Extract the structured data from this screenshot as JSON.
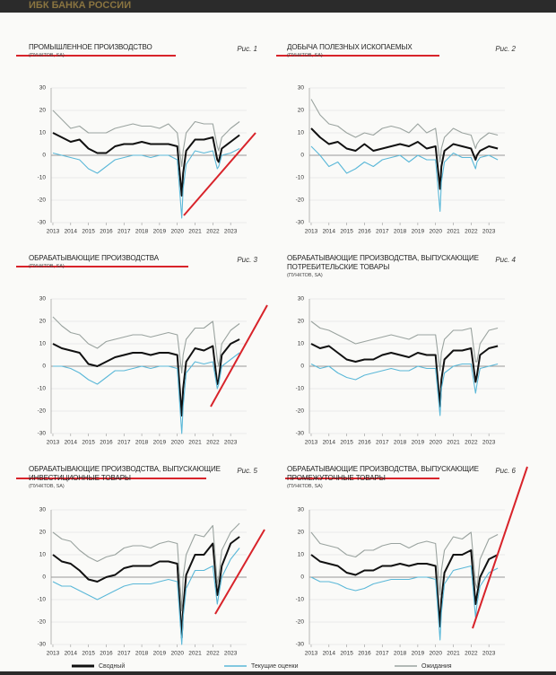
{
  "header": "ИБК БАНКА РОССИИ",
  "chart_data": [
    {
      "type": "line",
      "title": "ПРОМЫШЛЕННОЕ ПРОИЗВОДСТВО",
      "figure_label": "Рис. 1",
      "subtitle": "(ПУНКТОВ, SA)",
      "x": [
        2013,
        2013.5,
        2014,
        2014.5,
        2015,
        2015.5,
        2016,
        2016.5,
        2017,
        2017.5,
        2018,
        2018.5,
        2019,
        2019.5,
        2020,
        2020.25,
        2020.33,
        2020.5,
        2021,
        2021.5,
        2022,
        2022.25,
        2022.33,
        2022.5,
        2023,
        2023.5
      ],
      "xlim": [
        2012.9,
        2023.9
      ],
      "xticks": [
        2013,
        2014,
        2015,
        2016,
        2017,
        2018,
        2019,
        2020,
        2021,
        2022,
        2023
      ],
      "ylim": [
        -30,
        30
      ],
      "yticks": [
        -30,
        -20,
        -10,
        0,
        10,
        20,
        30
      ],
      "grid": true,
      "series": [
        {
          "name": "Сводный",
          "color": "#111111",
          "values": [
            10,
            8,
            6,
            7,
            3,
            1,
            1,
            4,
            5,
            5,
            6,
            5,
            5,
            5,
            4,
            -18,
            -8,
            2,
            7,
            7,
            8,
            -2,
            -3,
            3,
            6,
            9
          ]
        },
        {
          "name": "Текущие оценки",
          "color": "#5bb8d8",
          "values": [
            1,
            0,
            -1,
            -2,
            -6,
            -8,
            -5,
            -2,
            -1,
            0,
            0,
            -1,
            0,
            0,
            -2,
            -28,
            -15,
            -4,
            2,
            1,
            2,
            -6,
            -5,
            0,
            1,
            3
          ]
        },
        {
          "name": "Ожидания",
          "color": "#9aa39f",
          "values": [
            20,
            16,
            12,
            13,
            10,
            10,
            10,
            12,
            13,
            14,
            13,
            13,
            12,
            14,
            10,
            -5,
            2,
            10,
            15,
            14,
            14,
            4,
            2,
            8,
            12,
            15
          ]
        }
      ]
    },
    {
      "type": "line",
      "title": "ДОБЫЧА ПОЛЕЗНЫХ ИСКОПАЕМЫХ",
      "figure_label": "Рис. 2",
      "subtitle": "(ПУНКТОВ, SA)",
      "x": [
        2013,
        2013.5,
        2014,
        2014.5,
        2015,
        2015.5,
        2016,
        2016.5,
        2017,
        2017.5,
        2018,
        2018.5,
        2019,
        2019.5,
        2020,
        2020.25,
        2020.33,
        2020.5,
        2021,
        2021.5,
        2022,
        2022.25,
        2022.33,
        2022.5,
        2023,
        2023.5
      ],
      "xlim": [
        2012.9,
        2023.9
      ],
      "xticks": [
        2013,
        2014,
        2015,
        2016,
        2017,
        2018,
        2019,
        2020,
        2021,
        2022,
        2023
      ],
      "ylim": [
        -30,
        30
      ],
      "yticks": [
        -30,
        -20,
        -10,
        0,
        10,
        20,
        30
      ],
      "grid": true,
      "series": [
        {
          "name": "Сводный",
          "color": "#111111",
          "values": [
            12,
            8,
            5,
            6,
            3,
            2,
            5,
            2,
            3,
            4,
            5,
            4,
            6,
            3,
            4,
            -15,
            -5,
            2,
            5,
            4,
            3,
            -2,
            0,
            2,
            4,
            3
          ]
        },
        {
          "name": "Текущие оценки",
          "color": "#5bb8d8",
          "values": [
            4,
            0,
            -5,
            -3,
            -8,
            -6,
            -3,
            -5,
            -2,
            -1,
            0,
            -3,
            0,
            -2,
            -2,
            -25,
            -12,
            -3,
            1,
            -1,
            -1,
            -6,
            -3,
            -1,
            0,
            -2
          ]
        },
        {
          "name": "Ожидания",
          "color": "#9aa39f",
          "values": [
            25,
            18,
            14,
            13,
            10,
            8,
            10,
            9,
            12,
            13,
            12,
            10,
            14,
            10,
            12,
            -3,
            3,
            8,
            12,
            10,
            9,
            3,
            5,
            7,
            10,
            9
          ]
        }
      ]
    },
    {
      "type": "line",
      "title": "ОБРАБАТЫВАЮЩИЕ ПРОИЗВОДСТВА",
      "figure_label": "Рис. 3",
      "subtitle": "(ПУНКТОВ, SA)",
      "x": [
        2013,
        2013.5,
        2014,
        2014.5,
        2015,
        2015.5,
        2016,
        2016.5,
        2017,
        2017.5,
        2018,
        2018.5,
        2019,
        2019.5,
        2020,
        2020.25,
        2020.33,
        2020.5,
        2021,
        2021.5,
        2022,
        2022.25,
        2022.33,
        2022.5,
        2023,
        2023.5
      ],
      "xlim": [
        2012.9,
        2023.9
      ],
      "xticks": [
        2013,
        2014,
        2015,
        2016,
        2017,
        2018,
        2019,
        2020,
        2021,
        2022,
        2023
      ],
      "ylim": [
        -30,
        30
      ],
      "yticks": [
        -30,
        -20,
        -10,
        0,
        10,
        20,
        30
      ],
      "grid": true,
      "series": [
        {
          "name": "Сводный",
          "color": "#111111",
          "values": [
            10,
            8,
            7,
            6,
            1,
            0,
            2,
            4,
            5,
            6,
            6,
            5,
            6,
            6,
            5,
            -22,
            -10,
            2,
            8,
            7,
            9,
            -8,
            -6,
            5,
            10,
            12
          ]
        },
        {
          "name": "Текущие оценки",
          "color": "#5bb8d8",
          "values": [
            0,
            0,
            -1,
            -3,
            -6,
            -8,
            -5,
            -2,
            -2,
            -1,
            0,
            -1,
            0,
            0,
            -1,
            -30,
            -18,
            -3,
            2,
            1,
            2,
            -10,
            -8,
            0,
            3,
            6
          ]
        },
        {
          "name": "Ожидания",
          "color": "#9aa39f",
          "values": [
            22,
            18,
            15,
            14,
            10,
            8,
            11,
            12,
            13,
            14,
            14,
            13,
            14,
            15,
            14,
            -3,
            5,
            12,
            17,
            17,
            20,
            3,
            0,
            10,
            16,
            19
          ]
        }
      ]
    },
    {
      "type": "line",
      "title": "ОБРАБАТЫВАЮЩИЕ ПРОИЗВОДСТВА, ВЫПУСКАЮЩИЕ ПОТРЕБИТЕЛЬСКИЕ ТОВАРЫ",
      "figure_label": "Рис. 4",
      "subtitle": "(ПУНКТОВ, SA)",
      "x": [
        2013,
        2013.5,
        2014,
        2014.5,
        2015,
        2015.5,
        2016,
        2016.5,
        2017,
        2017.5,
        2018,
        2018.5,
        2019,
        2019.5,
        2020,
        2020.25,
        2020.33,
        2020.5,
        2021,
        2021.5,
        2022,
        2022.25,
        2022.33,
        2022.5,
        2023,
        2023.5
      ],
      "xlim": [
        2012.9,
        2023.9
      ],
      "xticks": [
        2013,
        2014,
        2015,
        2016,
        2017,
        2018,
        2019,
        2020,
        2021,
        2022,
        2023
      ],
      "ylim": [
        -30,
        30
      ],
      "yticks": [
        -30,
        -20,
        -10,
        0,
        10,
        20,
        30
      ],
      "grid": true,
      "series": [
        {
          "name": "Сводный",
          "color": "#111111",
          "values": [
            10,
            8,
            9,
            6,
            3,
            2,
            3,
            3,
            5,
            6,
            5,
            4,
            6,
            5,
            5,
            -18,
            -6,
            3,
            7,
            7,
            8,
            -7,
            -4,
            5,
            8,
            9
          ]
        },
        {
          "name": "Текущие оценки",
          "color": "#5bb8d8",
          "values": [
            1,
            -1,
            0,
            -3,
            -5,
            -6,
            -4,
            -3,
            -2,
            -1,
            -2,
            -2,
            0,
            -1,
            -1,
            -22,
            -10,
            -3,
            0,
            1,
            1,
            -12,
            -8,
            -1,
            0,
            1
          ]
        },
        {
          "name": "Ожидания",
          "color": "#9aa39f",
          "values": [
            20,
            17,
            16,
            14,
            12,
            10,
            11,
            12,
            13,
            14,
            13,
            12,
            14,
            14,
            14,
            -2,
            6,
            12,
            16,
            16,
            17,
            2,
            2,
            10,
            16,
            17
          ]
        }
      ]
    },
    {
      "type": "line",
      "title": "ОБРАБАТЫВАЮЩИЕ ПРОИЗВОДСТВА, ВЫПУСКАЮЩИЕ ИНВЕСТИЦИОННЫЕ ТОВАРЫ",
      "figure_label": "Рис. 5",
      "subtitle": "(ПУНКТОВ, SA)",
      "x": [
        2013,
        2013.5,
        2014,
        2014.5,
        2015,
        2015.5,
        2016,
        2016.5,
        2017,
        2017.5,
        2018,
        2018.5,
        2019,
        2019.5,
        2020,
        2020.25,
        2020.33,
        2020.5,
        2021,
        2021.5,
        2022,
        2022.25,
        2022.33,
        2022.5,
        2023,
        2023.5
      ],
      "xlim": [
        2012.9,
        2023.9
      ],
      "xticks": [
        2013,
        2014,
        2015,
        2016,
        2017,
        2018,
        2019,
        2020,
        2021,
        2022,
        2023
      ],
      "ylim": [
        -30,
        30
      ],
      "yticks": [
        -30,
        -20,
        -10,
        0,
        10,
        20,
        30
      ],
      "grid": true,
      "series": [
        {
          "name": "Сводный",
          "color": "#111111",
          "values": [
            10,
            7,
            6,
            3,
            -1,
            -2,
            0,
            1,
            4,
            5,
            5,
            5,
            7,
            7,
            6,
            -27,
            -14,
            1,
            10,
            10,
            15,
            -8,
            -5,
            5,
            15,
            18
          ]
        },
        {
          "name": "Текущие оценки",
          "color": "#5bb8d8",
          "values": [
            -2,
            -4,
            -4,
            -6,
            -8,
            -10,
            -8,
            -6,
            -4,
            -3,
            -3,
            -3,
            -2,
            -1,
            -2,
            -30,
            -18,
            -5,
            3,
            3,
            5,
            -12,
            -8,
            0,
            8,
            13
          ]
        },
        {
          "name": "Ожидания",
          "color": "#9aa39f",
          "values": [
            20,
            17,
            16,
            12,
            9,
            7,
            9,
            10,
            13,
            14,
            14,
            13,
            15,
            16,
            15,
            -15,
            0,
            10,
            19,
            18,
            23,
            -3,
            0,
            12,
            20,
            24
          ]
        }
      ]
    },
    {
      "type": "line",
      "title": "ОБРАБАТЫВАЮЩИЕ ПРОИЗВОДСТВА, ВЫПУСКАЮЩИЕ ПРОМЕЖУТОЧНЫЕ ТОВАРЫ",
      "figure_label": "Рис. 6",
      "subtitle": "(ПУНКТОВ, SA)",
      "x": [
        2013,
        2013.5,
        2014,
        2014.5,
        2015,
        2015.5,
        2016,
        2016.5,
        2017,
        2017.5,
        2018,
        2018.5,
        2019,
        2019.5,
        2020,
        2020.25,
        2020.33,
        2020.5,
        2021,
        2021.5,
        2022,
        2022.25,
        2022.33,
        2022.5,
        2023,
        2023.5
      ],
      "xlim": [
        2012.9,
        2023.9
      ],
      "xticks": [
        2013,
        2014,
        2015,
        2016,
        2017,
        2018,
        2019,
        2020,
        2021,
        2022,
        2023
      ],
      "ylim": [
        -30,
        30
      ],
      "yticks": [
        -30,
        -20,
        -10,
        0,
        10,
        20,
        30
      ],
      "grid": true,
      "series": [
        {
          "name": "Сводный",
          "color": "#111111",
          "values": [
            10,
            7,
            6,
            5,
            2,
            1,
            3,
            3,
            5,
            5,
            6,
            5,
            6,
            6,
            5,
            -22,
            -10,
            2,
            10,
            10,
            12,
            -12,
            -8,
            0,
            8,
            10
          ]
        },
        {
          "name": "Текущие оценки",
          "color": "#5bb8d8",
          "values": [
            0,
            -2,
            -2,
            -3,
            -5,
            -6,
            -5,
            -3,
            -2,
            -1,
            -1,
            -1,
            0,
            0,
            -1,
            -28,
            -16,
            -3,
            3,
            4,
            5,
            -18,
            -12,
            -4,
            2,
            4
          ]
        },
        {
          "name": "Ожидания",
          "color": "#9aa39f",
          "values": [
            20,
            15,
            14,
            13,
            10,
            9,
            12,
            12,
            14,
            15,
            15,
            13,
            15,
            16,
            15,
            -8,
            3,
            12,
            18,
            17,
            20,
            -3,
            -5,
            8,
            17,
            19
          ]
        }
      ]
    }
  ]
}
